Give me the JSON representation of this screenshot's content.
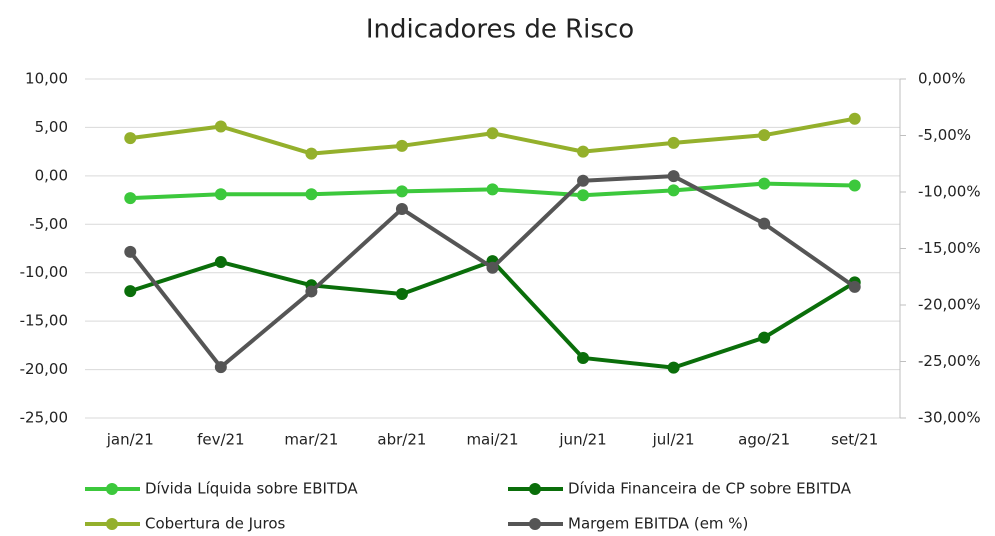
{
  "chart_data": {
    "type": "line",
    "title": "Indicadores de Risco",
    "categories": [
      "jan/21",
      "fev/21",
      "mar/21",
      "abr/21",
      "mai/21",
      "jun/21",
      "jul/21",
      "ago/21",
      "set/21"
    ],
    "series": [
      {
        "name": "Dívida Líquida sobre EBITDA",
        "color": "#3cc83c",
        "values": [
          -2.3,
          -1.9,
          -1.9,
          -1.6,
          -1.4,
          -2.0,
          -1.5,
          -0.8,
          -1.0
        ]
      },
      {
        "name": "Dívida Financeira de CP sobre EBITDA",
        "color": "#0a6e0a",
        "values": [
          -11.9,
          -8.9,
          -11.3,
          -12.2,
          -8.8,
          -18.8,
          -19.8,
          -16.7,
          -11.0
        ]
      },
      {
        "name": "Cobertura de Juros",
        "color": "#94b02c",
        "values": [
          3.9,
          5.1,
          2.3,
          3.1,
          4.4,
          2.5,
          3.4,
          4.2,
          5.9
        ]
      },
      {
        "name": "Margem EBITDA (em %)",
        "color": "#555555",
        "axis": "y2",
        "values": [
          -15.3,
          -25.5,
          -18.8,
          -11.5,
          -16.7,
          -9.0,
          -8.6,
          -12.8,
          -18.4
        ]
      }
    ],
    "ylim": [
      -25,
      10
    ],
    "yticks": [
      {
        "value": 10,
        "label": "10,00"
      },
      {
        "value": 5,
        "label": "5,00"
      },
      {
        "value": 0,
        "label": "0,00"
      },
      {
        "value": -5,
        "label": "-5,00"
      },
      {
        "value": -10,
        "label": "-10,00"
      },
      {
        "value": -15,
        "label": "-15,00"
      },
      {
        "value": -20,
        "label": "-20,00"
      },
      {
        "value": -25,
        "label": "-25,00"
      }
    ],
    "y2lim": [
      -30,
      0
    ],
    "y2ticks": [
      {
        "value": 0,
        "label": "0,00%"
      },
      {
        "value": -5,
        "label": "-5,00%"
      },
      {
        "value": -10,
        "label": "-10,00%"
      },
      {
        "value": -15,
        "label": "-15,00%"
      },
      {
        "value": -20,
        "label": "-20,00%"
      },
      {
        "value": -25,
        "label": "-25,00%"
      },
      {
        "value": -30,
        "label": "-30,00%"
      }
    ],
    "grid": true,
    "legend": "bottom"
  }
}
